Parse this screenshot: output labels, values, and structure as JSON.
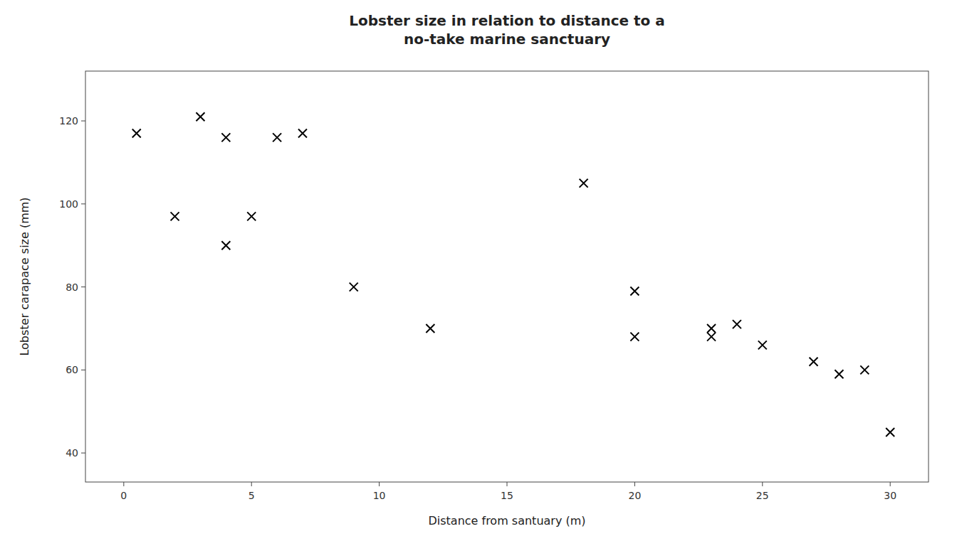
{
  "chart_data": {
    "type": "scatter",
    "title": "Lobster size in relation to distance to a\nno-take marine sanctuary",
    "xlabel": "Distance from santuary (m)",
    "ylabel": "Lobster carapace size (mm)",
    "x": [
      0.5,
      2,
      3,
      4,
      4,
      5,
      6,
      7,
      9,
      12,
      18,
      20,
      20,
      23,
      23,
      24,
      25,
      27,
      28,
      29,
      30
    ],
    "values": [
      117,
      97,
      121,
      116,
      90,
      97,
      116,
      117,
      80,
      70,
      105,
      79,
      68,
      70,
      68,
      71,
      66,
      62,
      59,
      60,
      45
    ],
    "xlim": [
      -1.5,
      31.5
    ],
    "ylim": [
      33,
      132
    ],
    "xticks": [
      0,
      5,
      10,
      15,
      20,
      25,
      30
    ],
    "yticks": [
      40,
      60,
      80,
      100,
      120
    ],
    "marker": "x",
    "color": "black",
    "grid": false
  }
}
